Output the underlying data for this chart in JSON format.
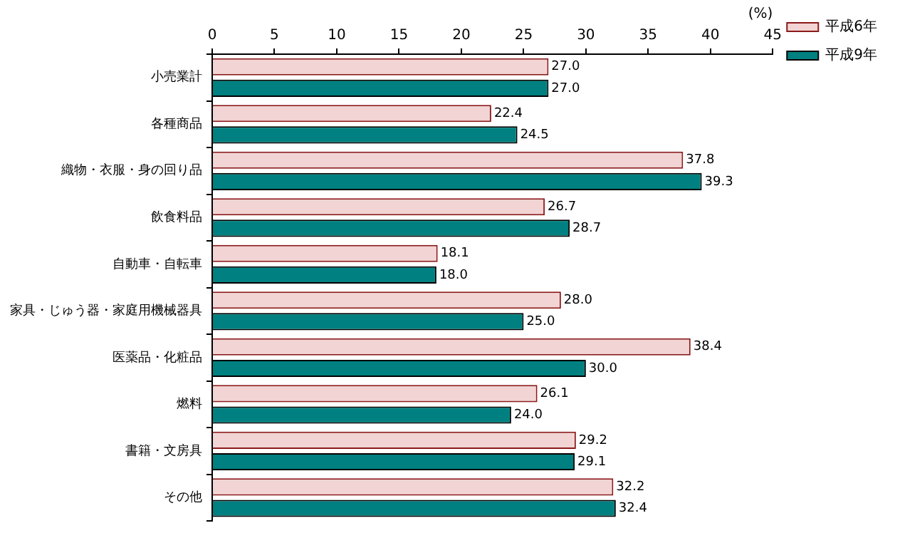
{
  "chart_data": {
    "type": "bar",
    "orientation": "horizontal",
    "xlabel": "(%)",
    "categories": [
      "小売業計",
      "各種商品",
      "織物・衣服・身の回り品",
      "飲食料品",
      "自動車・自転車",
      "家具・じゅう器・家庭用機械器具",
      "医薬品・化粧品",
      "燃料",
      "書籍・文房具",
      "その他"
    ],
    "series": [
      {
        "name": "平成6年",
        "color": "#f2d4d4",
        "values": [
          27.0,
          22.4,
          37.8,
          26.7,
          18.1,
          28.0,
          38.4,
          26.1,
          29.2,
          32.2
        ],
        "value_labels": [
          "27.0",
          "22.4",
          "37.8",
          "26.7",
          "18.1",
          "28.0",
          "38.4",
          "26.1",
          "29.2",
          "32.2"
        ]
      },
      {
        "name": "平成9年",
        "color": "#008080",
        "values": [
          27.0,
          24.5,
          39.3,
          28.7,
          18.0,
          25.0,
          30.0,
          24.0,
          29.1,
          32.4
        ],
        "value_labels": [
          "27.0",
          "24.5",
          "39.3",
          "28.7",
          "18.0",
          "25.0",
          "30.0",
          "24.0",
          "29.1",
          "32.4"
        ]
      }
    ],
    "xlim": [
      0,
      45
    ],
    "xticks": [
      0,
      5,
      10,
      15,
      20,
      25,
      30,
      35,
      40,
      45
    ],
    "data_labels": true,
    "legend": "top right",
    "grid": false
  }
}
